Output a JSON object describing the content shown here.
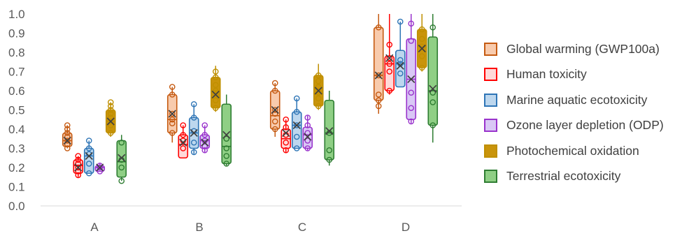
{
  "chart_data": {
    "type": "boxplot",
    "title": "",
    "xlabel": "",
    "ylabel": "",
    "ylim": [
      0,
      1.0
    ],
    "yticks": [
      "0.0",
      "0.1",
      "0.2",
      "0.3",
      "0.4",
      "0.5",
      "0.6",
      "0.7",
      "0.8",
      "0.9",
      "1.0"
    ],
    "categories": [
      "A",
      "B",
      "C",
      "D"
    ],
    "legend_position": "right",
    "series": [
      {
        "name": "Global warming (GWP100a)",
        "stroke": "#c55a11",
        "fill": "#f8cbad",
        "boxes": [
          {
            "min": 0.3,
            "q1": 0.31,
            "median": 0.34,
            "q3": 0.38,
            "max": 0.42,
            "mean": 0.34,
            "points": [
              0.3,
              0.32,
              0.34,
              0.36,
              0.38,
              0.4,
              0.42
            ]
          },
          {
            "min": 0.33,
            "q1": 0.38,
            "median": 0.45,
            "q3": 0.58,
            "max": 0.62,
            "mean": 0.48,
            "points": [
              0.38,
              0.43,
              0.45,
              0.48,
              0.58,
              0.62
            ]
          },
          {
            "min": 0.36,
            "q1": 0.4,
            "median": 0.47,
            "q3": 0.6,
            "max": 0.64,
            "mean": 0.5,
            "points": [
              0.4,
              0.44,
              0.48,
              0.5,
              0.6,
              0.64
            ]
          },
          {
            "min": 0.48,
            "q1": 0.55,
            "median": 0.68,
            "q3": 0.93,
            "max": 1.0,
            "mean": 0.68,
            "points": [
              0.52,
              0.55,
              0.58,
              0.68,
              0.93
            ]
          }
        ]
      },
      {
        "name": "Human toxicity",
        "stroke": "#ff0000",
        "fill": "#ffd9d9",
        "boxes": [
          {
            "min": 0.15,
            "q1": 0.17,
            "median": 0.21,
            "q3": 0.24,
            "max": 0.26,
            "mean": 0.2,
            "points": [
              0.16,
              0.18,
              0.2,
              0.22,
              0.24,
              0.26
            ]
          },
          {
            "min": 0.25,
            "q1": 0.25,
            "median": 0.32,
            "q3": 0.37,
            "max": 0.42,
            "mean": 0.33,
            "points": [
              0.3,
              0.34,
              0.37,
              0.42
            ]
          },
          {
            "min": 0.28,
            "q1": 0.3,
            "median": 0.35,
            "q3": 0.4,
            "max": 0.45,
            "mean": 0.38,
            "points": [
              0.29,
              0.33,
              0.37,
              0.41,
              0.45
            ]
          },
          {
            "min": 0.58,
            "q1": 0.6,
            "median": 0.74,
            "q3": 0.78,
            "max": 1.0,
            "mean": 0.77,
            "points": [
              0.6,
              0.7,
              0.74,
              0.77,
              0.84
            ]
          }
        ]
      },
      {
        "name": "Marine aquatic ecotoxicity",
        "stroke": "#2e75b6",
        "fill": "#bdd7ee",
        "boxes": [
          {
            "min": 0.17,
            "q1": 0.17,
            "median": 0.26,
            "q3": 0.3,
            "max": 0.34,
            "mean": 0.26,
            "points": [
              0.17,
              0.22,
              0.27,
              0.3,
              0.34
            ]
          },
          {
            "min": 0.27,
            "q1": 0.3,
            "median": 0.38,
            "q3": 0.46,
            "max": 0.53,
            "mean": 0.38,
            "points": [
              0.28,
              0.33,
              0.39,
              0.46,
              0.53
            ]
          },
          {
            "min": 0.3,
            "q1": 0.3,
            "median": 0.42,
            "q3": 0.49,
            "max": 0.56,
            "mean": 0.42,
            "points": [
              0.3,
              0.36,
              0.42,
              0.49,
              0.56
            ]
          },
          {
            "min": 0.62,
            "q1": 0.62,
            "median": 0.74,
            "q3": 0.81,
            "max": 0.96,
            "mean": 0.73,
            "points": [
              0.69,
              0.74,
              0.76,
              0.96
            ]
          }
        ]
      },
      {
        "name": "Ozone layer depletion (ODP)",
        "stroke": "#9933cc",
        "fill": "#d9c8f5",
        "boxes": [
          {
            "min": 0.18,
            "q1": 0.18,
            "median": 0.2,
            "q3": 0.21,
            "max": 0.22,
            "mean": 0.2,
            "points": [
              0.18,
              0.2,
              0.21
            ]
          },
          {
            "min": 0.28,
            "q1": 0.3,
            "median": 0.34,
            "q3": 0.37,
            "max": 0.42,
            "mean": 0.33,
            "points": [
              0.29,
              0.31,
              0.34,
              0.37,
              0.42
            ]
          },
          {
            "min": 0.29,
            "q1": 0.3,
            "median": 0.37,
            "q3": 0.41,
            "max": 0.47,
            "mean": 0.36,
            "points": [
              0.3,
              0.34,
              0.38,
              0.42,
              0.46
            ]
          },
          {
            "min": 0.43,
            "q1": 0.45,
            "median": 0.66,
            "q3": 0.87,
            "max": 1.0,
            "mean": 0.66,
            "points": [
              0.44,
              0.51,
              0.59,
              0.86,
              0.95
            ]
          }
        ]
      },
      {
        "name": "Photochemical oxidation",
        "stroke": "#bf8f00",
        "fill": "#c9940b",
        "boxes": [
          {
            "min": 0.36,
            "q1": 0.38,
            "median": 0.44,
            "q3": 0.5,
            "max": 0.54,
            "mean": 0.44,
            "points": [
              0.38,
              0.42,
              0.44,
              0.46,
              0.48,
              0.5,
              0.52,
              0.54
            ]
          },
          {
            "min": 0.49,
            "q1": 0.51,
            "median": 0.6,
            "q3": 0.67,
            "max": 0.73,
            "mean": 0.58,
            "points": [
              0.51,
              0.55,
              0.58,
              0.6,
              0.63,
              0.67,
              0.7
            ]
          },
          {
            "min": 0.5,
            "q1": 0.52,
            "median": 0.61,
            "q3": 0.68,
            "max": 0.74,
            "mean": 0.6,
            "points": [
              0.52,
              0.56,
              0.59,
              0.62,
              0.65,
              0.68
            ]
          },
          {
            "min": 0.7,
            "q1": 0.72,
            "median": 0.83,
            "q3": 0.92,
            "max": 1.0,
            "mean": 0.82,
            "points": [
              0.72,
              0.78,
              0.83,
              0.87,
              0.92
            ]
          }
        ]
      },
      {
        "name": "Terrestrial ecotoxicity",
        "stroke": "#2e7d32",
        "fill": "#8fcf85",
        "boxes": [
          {
            "min": 0.13,
            "q1": 0.15,
            "median": 0.23,
            "q3": 0.34,
            "max": 0.37,
            "mean": 0.25,
            "points": [
              0.13,
              0.2,
              0.24,
              0.33
            ]
          },
          {
            "min": 0.21,
            "q1": 0.22,
            "median": 0.31,
            "q3": 0.53,
            "max": 0.58,
            "mean": 0.37,
            "points": [
              0.22,
              0.26,
              0.3,
              0.35
            ]
          },
          {
            "min": 0.21,
            "q1": 0.24,
            "median": 0.38,
            "q3": 0.55,
            "max": 0.6,
            "mean": 0.39,
            "points": [
              0.24,
              0.29,
              0.38
            ]
          },
          {
            "min": 0.33,
            "q1": 0.42,
            "median": 0.6,
            "q3": 0.88,
            "max": 1.0,
            "mean": 0.61,
            "points": [
              0.42,
              0.54,
              0.59,
              0.93
            ]
          }
        ]
      }
    ]
  }
}
